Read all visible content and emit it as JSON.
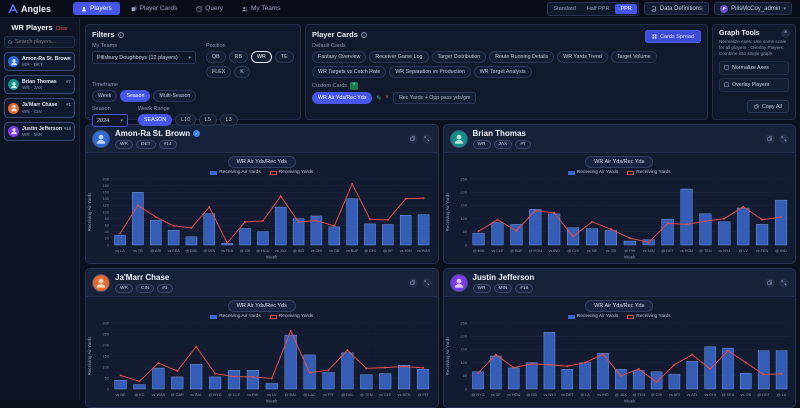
{
  "nav": {
    "brand": "Angles",
    "tabs": [
      {
        "label": "Players",
        "icon": "person-icon",
        "active": true
      },
      {
        "label": "Player Cards",
        "icon": "cards-icon",
        "active": false
      },
      {
        "label": "Query",
        "icon": "database-icon",
        "active": false
      },
      {
        "label": "My Teams",
        "icon": "users-icon",
        "active": false
      }
    ],
    "scoring_options": [
      "Standard",
      "Half PPR",
      "PPR"
    ],
    "scoring_active": "PPR",
    "data_definitions_label": "Data Definitions",
    "user_name": "PillsMcCoy_admin",
    "user_initial": "P"
  },
  "sidebar": {
    "title": "WR Players",
    "clear_label": "Clear",
    "search_placeholder": "Search players...",
    "players": [
      {
        "name": "Amon-Ra St. Brown",
        "meta": "WR · DET",
        "num": "#14",
        "color": "#2f6bd8"
      },
      {
        "name": "Brian Thomas",
        "meta": "WR · JAX",
        "num": "#7",
        "color": "#0f8f86"
      },
      {
        "name": "Ja'Marr Chase",
        "meta": "WR · CIN",
        "num": "#1",
        "color": "#e8692a"
      },
      {
        "name": "Justin Jefferson",
        "meta": "WR · MIN",
        "num": "#18",
        "color": "#7c3aed"
      }
    ]
  },
  "filters": {
    "title": "Filters",
    "my_teams_label": "My Teams",
    "my_teams_value": "Pillsbury Doughboys (12 players)",
    "position_label": "Position",
    "positions": [
      "QB",
      "RB",
      "WR",
      "TE",
      "FLEX",
      "K"
    ],
    "position_active": "WR",
    "timeframe_label": "Timeframe",
    "timeframes": [
      "Week",
      "Season",
      "Multi-Season"
    ],
    "timeframe_active": "Season",
    "season_label": "Season",
    "season_value": "2024",
    "week_range_label": "Week Range",
    "week_ranges": [
      "SEASON",
      "L10",
      "L5",
      "L3"
    ],
    "week_range_active": "SEASON"
  },
  "player_cards": {
    "title": "Player Cards",
    "spread_button": "Cards Spread",
    "default_label": "Default Cards",
    "default_cards": [
      "Fantasy Overview",
      "Receiver Game Log",
      "Target Distribution",
      "Route Running Details",
      "WR Yards Trend",
      "Target Volume",
      "WR Targets vs Catch Rate",
      "WR Separation vs Production",
      "WR Target Analysis"
    ],
    "custom_label": "Custom Cards",
    "custom_card_active": "WR Air Yds/Rec Yds",
    "custom_formula": "Rec Yards + Opp pass yds/gm"
  },
  "graph_tools": {
    "title": "Graph Tools",
    "hint": "Normalize Axes: Use same scale for all players · Overlay Players: Combine into single graph",
    "options": [
      "Normalize Axes",
      "Overlay Players"
    ],
    "copy_all_label": "Copy All"
  },
  "chart_data": [
    {
      "type": "bar",
      "player": {
        "name": "Amon-Ra St. Brown",
        "verified": true,
        "badges": [
          "WR",
          "DET",
          "#14"
        ],
        "color": "#2f6bd8"
      },
      "tab": "WR Air Yds/Rec Yds",
      "xlabel": "Week",
      "ylabel": "Receiving Air Yards",
      "ylim": [
        0,
        200
      ],
      "ytick": 20,
      "grid": true,
      "legend_position": "top",
      "categories": [
        "vs LA",
        "vs TB",
        "@ ARI",
        "vs SEA",
        "@ DAL",
        "@ MIN",
        "vs TEN",
        "@ GB",
        "@ HOU",
        "vs JAX",
        "@ IND",
        "vs CHI",
        "vs GB",
        "vs BUF",
        "@ CHI",
        "@ SF",
        "vs MIN",
        "vs WAS"
      ],
      "series": [
        {
          "name": "Receiving Air Yards",
          "type": "bar",
          "color": "#3b68cf",
          "values": [
            30,
            160,
            75,
            45,
            25,
            95,
            5,
            50,
            40,
            115,
            80,
            88,
            55,
            140,
            64,
            62,
            90,
            92
          ]
        },
        {
          "name": "Receiving Yards",
          "type": "line",
          "color": "#e24c4c",
          "values": [
            35,
            120,
            85,
            58,
            52,
            115,
            6,
            70,
            73,
            148,
            70,
            74,
            58,
            185,
            78,
            76,
            140,
            142
          ]
        }
      ]
    },
    {
      "type": "bar",
      "player": {
        "name": "Brian Thomas",
        "verified": false,
        "badges": [
          "WR",
          "JAX",
          "#7"
        ],
        "color": "#0f8f86"
      },
      "tab": "WR Air Yds/Rec Yds",
      "xlabel": "Week",
      "ylabel": "Receiving Air Yards",
      "ylim": [
        0,
        250
      ],
      "ytick": 50,
      "grid": true,
      "legend_position": "top",
      "categories": [
        "@ MIA",
        "vs CLE",
        "@ BUF",
        "@ HOU",
        "vs IND",
        "@ CHI",
        "vs NE",
        "vs GB",
        "@ PHI",
        "vs MIN",
        "@ DET",
        "vs HOU",
        "@ TEN",
        "vs NYJ",
        "@ LV",
        "vs TEN",
        "@ IND"
      ],
      "series": [
        {
          "name": "Receiving Air Yards",
          "type": "bar",
          "color": "#3b68cf",
          "values": [
            45,
            85,
            78,
            135,
            118,
            65,
            62,
            55,
            15,
            20,
            98,
            212,
            118,
            88,
            140,
            78,
            170
          ]
        },
        {
          "name": "Receiving Yards",
          "type": "line",
          "color": "#e24c4c",
          "values": [
            52,
            96,
            54,
            130,
            122,
            32,
            88,
            60,
            26,
            10,
            82,
            78,
            90,
            100,
            145,
            96,
            105
          ]
        }
      ]
    },
    {
      "type": "bar",
      "player": {
        "name": "Ja'Marr Chase",
        "verified": false,
        "badges": [
          "WR",
          "CIN",
          "#1"
        ],
        "color": "#e8692a"
      },
      "tab": "WR Air Yds/Rec Yds",
      "xlabel": "Week",
      "ylabel": "Receiving Air Yards",
      "ylim": [
        0,
        300
      ],
      "ytick": 50,
      "grid": true,
      "legend_position": "top",
      "categories": [
        "vs NE",
        "@ KC",
        "vs WAS",
        "@ CAR",
        "vs BAL",
        "@ NYG",
        "@ CLE",
        "vs PHI",
        "vs LV",
        "@ BAL",
        "@ LAC",
        "vs PIT",
        "@ DAL",
        "@ TEN",
        "vs CLE",
        "vs DEN",
        "@ PIT"
      ],
      "series": [
        {
          "name": "Receiving Air Yards",
          "type": "bar",
          "color": "#3b68cf",
          "values": [
            40,
            20,
            95,
            55,
            112,
            55,
            85,
            85,
            25,
            245,
            155,
            75,
            165,
            65,
            70,
            108,
            90
          ]
        },
        {
          "name": "Receiving Yards",
          "type": "line",
          "color": "#e24c4c",
          "values": [
            62,
            35,
            118,
            82,
            193,
            70,
            56,
            55,
            48,
            264,
            74,
            86,
            177,
            94,
            97,
            102,
            96
          ]
        }
      ]
    },
    {
      "type": "bar",
      "player": {
        "name": "Justin Jefferson",
        "verified": false,
        "badges": [
          "WR",
          "MIN",
          "#18"
        ],
        "color": "#7c3aed"
      },
      "tab": "WR Air Yds/Rec Yds",
      "xlabel": "Week",
      "ylabel": "Receiving Air Yards",
      "ylim": [
        0,
        250
      ],
      "ytick": 50,
      "grid": true,
      "legend_position": "top",
      "categories": [
        "@ NYG",
        "vs SF",
        "vs HOU",
        "@ GB",
        "vs NYJ",
        "vs DET",
        "@ LA",
        "vs IND",
        "@ JAX",
        "@ TEN",
        "@ CHI",
        "vs ARI",
        "vs ATL",
        "vs CHI",
        "@ SEA",
        "vs GB",
        "@ DET",
        "@ LA"
      ],
      "series": [
        {
          "name": "Receiving Air Yards",
          "type": "bar",
          "color": "#3b68cf",
          "values": [
            65,
            125,
            80,
            100,
            215,
            75,
            100,
            135,
            75,
            70,
            65,
            55,
            105,
            160,
            155,
            60,
            145,
            145
          ]
        },
        {
          "name": "Receiving Yards",
          "type": "line",
          "color": "#e24c4c",
          "values": [
            60,
            130,
            81,
            95,
            92,
            86,
            100,
            132,
            50,
            76,
            26,
            92,
            130,
            76,
            145,
            100,
            55,
            58
          ]
        }
      ]
    }
  ]
}
